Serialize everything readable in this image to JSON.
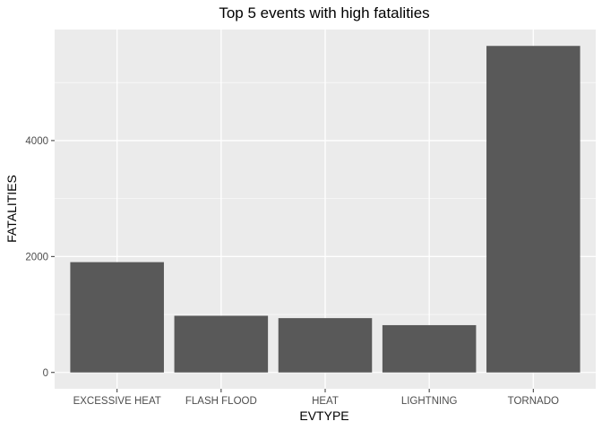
{
  "chart_data": {
    "type": "bar",
    "title": "Top 5 events with high fatalities",
    "xlabel": "EVTYPE",
    "ylabel": "FATALITIES",
    "categories": [
      "EXCESSIVE HEAT",
      "FLASH FLOOD",
      "HEAT",
      "LIGHTNING",
      "TORNADO"
    ],
    "values": [
      1903,
      978,
      937,
      816,
      5633
    ],
    "yticks": [
      0,
      2000,
      4000
    ],
    "ylim": [
      -282,
      5915
    ],
    "grid": true,
    "legend": "none",
    "colors": {
      "bar": "#595959",
      "panel": "#ebebeb",
      "grid_major": "#ffffff",
      "background": "#ffffff",
      "tick_text": "#4d4d4d"
    }
  }
}
